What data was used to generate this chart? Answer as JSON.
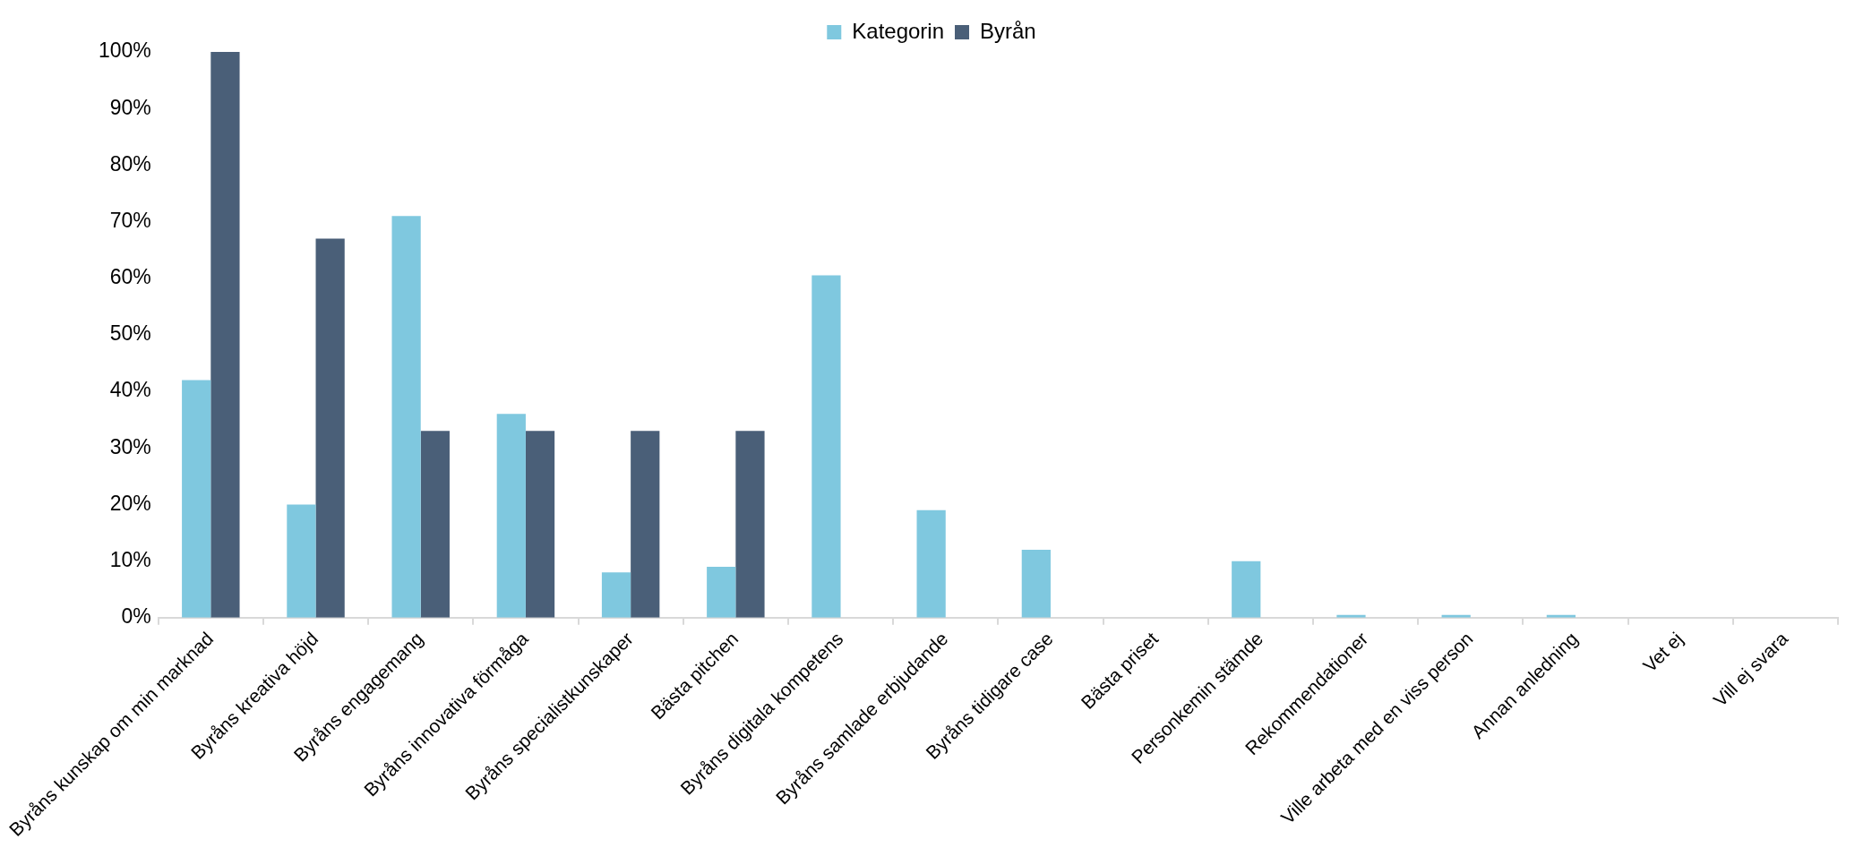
{
  "chart_data": {
    "type": "bar",
    "categories": [
      "Byråns kunskap om min marknad",
      "Byråns kreativa höjd",
      "Byråns engagemang",
      "Byråns innovativa förmåga",
      "Byråns specialistkunskaper",
      "Bästa pitchen",
      "Byråns digitala kompetens",
      "Byråns samlade erbjudande",
      "Byråns tidigare case",
      "Bästa priset",
      "Personkemin stämde",
      "Rekommendationer",
      "Ville arbeta med en viss person",
      "Annan anledning",
      "Vet ej",
      "Vill ej svara"
    ],
    "series": [
      {
        "name": "Kategorin",
        "color": "#7fc8df",
        "values": [
          42,
          20,
          71,
          36,
          8,
          9,
          60.5,
          19,
          12,
          0,
          10,
          0.5,
          0.5,
          0.5,
          0,
          0
        ]
      },
      {
        "name": "Byrån",
        "color": "#4a5f78",
        "values": [
          100,
          67,
          33,
          33,
          33,
          33,
          0,
          0,
          0,
          0,
          0,
          0,
          0,
          0,
          0,
          0
        ]
      }
    ],
    "ylim": [
      0,
      100
    ],
    "yticks": [
      {
        "value": 0,
        "label": "0%"
      },
      {
        "value": 10,
        "label": "10%"
      },
      {
        "value": 20,
        "label": "20%"
      },
      {
        "value": 30,
        "label": "30%"
      },
      {
        "value": 40,
        "label": "40%"
      },
      {
        "value": 50,
        "label": "50%"
      },
      {
        "value": 60,
        "label": "60%"
      },
      {
        "value": 70,
        "label": "70%"
      },
      {
        "value": 80,
        "label": "80%"
      },
      {
        "value": 90,
        "label": "90%"
      },
      {
        "value": 100,
        "label": "100%"
      }
    ],
    "grid": false,
    "legend": "top"
  }
}
